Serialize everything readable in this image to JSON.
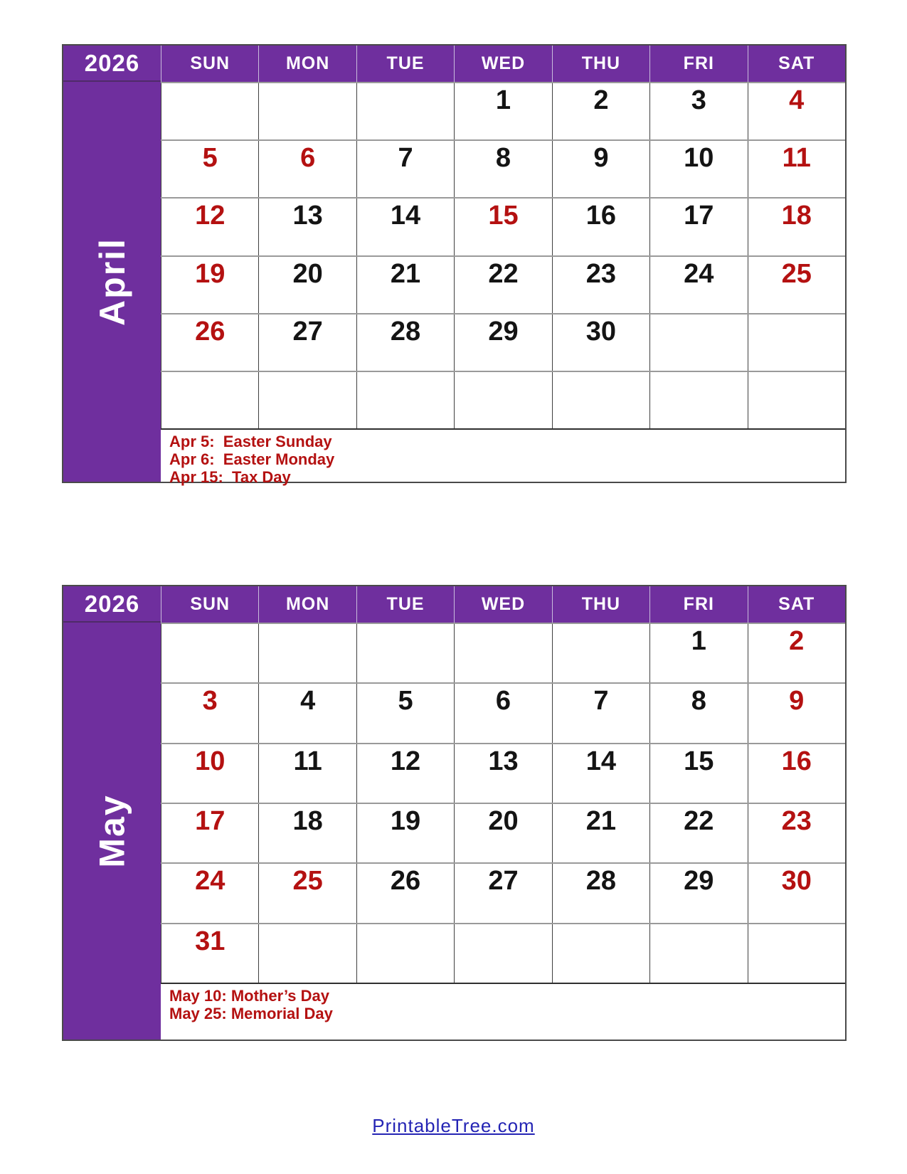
{
  "colors": {
    "purple": "#6f2f9e",
    "red": "#b41111",
    "black": "#141414",
    "grid_horizontal": "#9a9a9a",
    "grid_vertical": "#3f3f3f",
    "link": "#2424b4"
  },
  "footer": {
    "link_text": "PrintableTree.com"
  },
  "calendars": [
    {
      "year": "2026",
      "month": "April",
      "day_headers": [
        "SUN",
        "MON",
        "TUE",
        "WED",
        "THU",
        "FRI",
        "SAT"
      ],
      "weeks": [
        [
          {
            "text": "",
            "red": false
          },
          {
            "text": "",
            "red": false
          },
          {
            "text": "",
            "red": false
          },
          {
            "text": "1",
            "red": false
          },
          {
            "text": "2",
            "red": false
          },
          {
            "text": "3",
            "red": false
          },
          {
            "text": "4",
            "red": true
          }
        ],
        [
          {
            "text": "5",
            "red": true
          },
          {
            "text": "6",
            "red": true
          },
          {
            "text": "7",
            "red": false
          },
          {
            "text": "8",
            "red": false
          },
          {
            "text": "9",
            "red": false
          },
          {
            "text": "10",
            "red": false
          },
          {
            "text": "11",
            "red": true
          }
        ],
        [
          {
            "text": "12",
            "red": true
          },
          {
            "text": "13",
            "red": false
          },
          {
            "text": "14",
            "red": false
          },
          {
            "text": "15",
            "red": true
          },
          {
            "text": "16",
            "red": false
          },
          {
            "text": "17",
            "red": false
          },
          {
            "text": "18",
            "red": true
          }
        ],
        [
          {
            "text": "19",
            "red": true
          },
          {
            "text": "20",
            "red": false
          },
          {
            "text": "21",
            "red": false
          },
          {
            "text": "22",
            "red": false
          },
          {
            "text": "23",
            "red": false
          },
          {
            "text": "24",
            "red": false
          },
          {
            "text": "25",
            "red": true
          }
        ],
        [
          {
            "text": "26",
            "red": true
          },
          {
            "text": "27",
            "red": false
          },
          {
            "text": "28",
            "red": false
          },
          {
            "text": "29",
            "red": false
          },
          {
            "text": "30",
            "red": false
          },
          {
            "text": "",
            "red": false
          },
          {
            "text": "",
            "red": false
          }
        ],
        [
          {
            "text": "",
            "red": false
          },
          {
            "text": "",
            "red": false
          },
          {
            "text": "",
            "red": false
          },
          {
            "text": "",
            "red": false
          },
          {
            "text": "",
            "red": false
          },
          {
            "text": "",
            "red": false
          },
          {
            "text": "",
            "red": false
          }
        ]
      ],
      "holidays": [
        "Apr 5:  Easter Sunday",
        "Apr 6:  Easter Monday",
        "Apr 15:  Tax Day"
      ]
    },
    {
      "year": "2026",
      "month": "May",
      "day_headers": [
        "SUN",
        "MON",
        "TUE",
        "WED",
        "THU",
        "FRI",
        "SAT"
      ],
      "weeks": [
        [
          {
            "text": "",
            "red": false
          },
          {
            "text": "",
            "red": false
          },
          {
            "text": "",
            "red": false
          },
          {
            "text": "",
            "red": false
          },
          {
            "text": "",
            "red": false
          },
          {
            "text": "1",
            "red": false
          },
          {
            "text": "2",
            "red": true
          }
        ],
        [
          {
            "text": "3",
            "red": true
          },
          {
            "text": "4",
            "red": false
          },
          {
            "text": "5",
            "red": false
          },
          {
            "text": "6",
            "red": false
          },
          {
            "text": "7",
            "red": false
          },
          {
            "text": "8",
            "red": false
          },
          {
            "text": "9",
            "red": true
          }
        ],
        [
          {
            "text": "10",
            "red": true
          },
          {
            "text": "11",
            "red": false
          },
          {
            "text": "12",
            "red": false
          },
          {
            "text": "13",
            "red": false
          },
          {
            "text": "14",
            "red": false
          },
          {
            "text": "15",
            "red": false
          },
          {
            "text": "16",
            "red": true
          }
        ],
        [
          {
            "text": "17",
            "red": true
          },
          {
            "text": "18",
            "red": false
          },
          {
            "text": "19",
            "red": false
          },
          {
            "text": "20",
            "red": false
          },
          {
            "text": "21",
            "red": false
          },
          {
            "text": "22",
            "red": false
          },
          {
            "text": "23",
            "red": true
          }
        ],
        [
          {
            "text": "24",
            "red": true
          },
          {
            "text": "25",
            "red": true
          },
          {
            "text": "26",
            "red": false
          },
          {
            "text": "27",
            "red": false
          },
          {
            "text": "28",
            "red": false
          },
          {
            "text": "29",
            "red": false
          },
          {
            "text": "30",
            "red": true
          }
        ],
        [
          {
            "text": "31",
            "red": true
          },
          {
            "text": "",
            "red": false
          },
          {
            "text": "",
            "red": false
          },
          {
            "text": "",
            "red": false
          },
          {
            "text": "",
            "red": false
          },
          {
            "text": "",
            "red": false
          },
          {
            "text": "",
            "red": false
          }
        ]
      ],
      "holidays": [
        "May 10: Mother’s Day",
        "May 25: Memorial Day"
      ]
    }
  ]
}
